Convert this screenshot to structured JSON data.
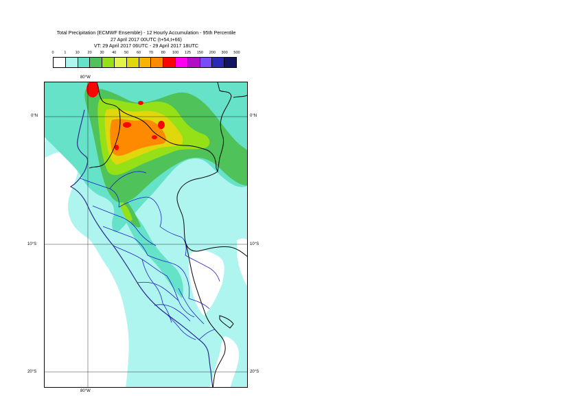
{
  "title": {
    "line1": "Total Precipitation (ECMWF Ensemble) - 12 Hourly Accumulation - 95th Percentile",
    "line2": "27 April 2017 00UTC (t+54,t+66)",
    "line3": "VT: 29 April 2017 06UTC - 29 April 2017 18UTC"
  },
  "legend": {
    "labels": [
      "0",
      "1",
      "10",
      "20",
      "30",
      "40",
      "50",
      "60",
      "70",
      "80",
      "100",
      "125",
      "150",
      "200",
      "300",
      "500"
    ],
    "colors": [
      "#ffffff",
      "#aef5f0",
      "#66e2c8",
      "#4fc25a",
      "#96e018",
      "#e2f44a",
      "#e0d80c",
      "#f6b406",
      "#fd8a00",
      "#f80606",
      "#ff00f0",
      "#b00ec4",
      "#784cf6",
      "#2a2ab4",
      "#141464"
    ]
  },
  "axes": {
    "lon_top": "80°W",
    "lon_bottom": "80°W",
    "lat_left": [
      "0°N",
      "10°S",
      "20°S"
    ],
    "lat_right": [
      "0°N",
      "10°S",
      "20°S"
    ]
  },
  "colors": {
    "ocean_low": "#aef5f0",
    "ocean_none": "#ffffff",
    "border_country": "#000000",
    "border_region": "#1c1cc8",
    "coast": "#2a2a8c"
  }
}
